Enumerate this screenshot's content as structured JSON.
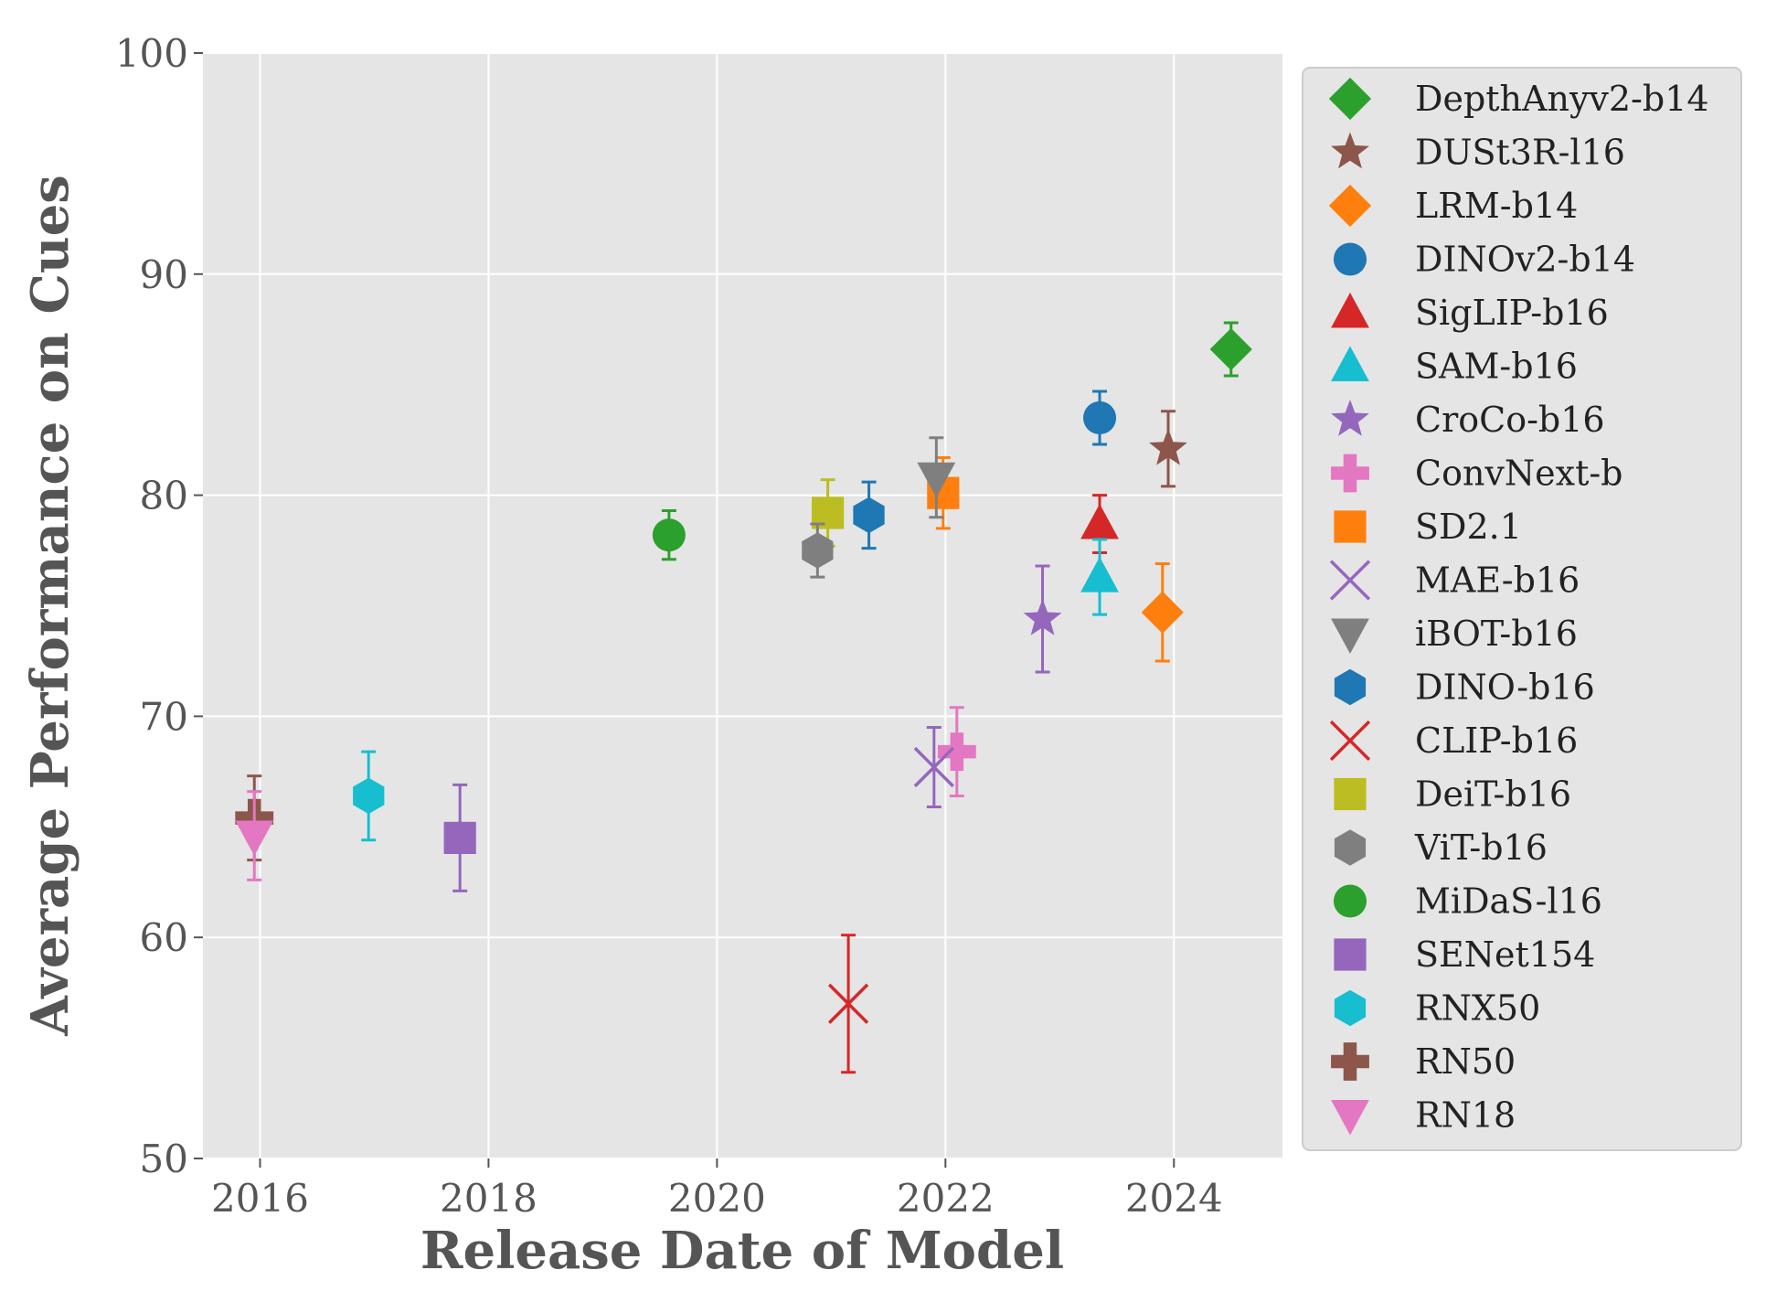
{
  "chart_data": {
    "type": "scatter",
    "title": "",
    "xlabel": "Release Date of Model",
    "ylabel": "Average Performance on Cues",
    "xlim": [
      2015.5,
      2024.95
    ],
    "ylim": [
      50,
      100
    ],
    "xticks": [
      2016,
      2018,
      2020,
      2022,
      2024
    ],
    "yticks": [
      50,
      60,
      70,
      80,
      90,
      100
    ],
    "grid": true,
    "legend_position": "right-outside",
    "series": [
      {
        "name": "DepthAnyv2-b14",
        "x": 2024.5,
        "y": 86.6,
        "err": [
          1.2,
          1.2
        ],
        "marker": "diamond",
        "color": "#2ca02c"
      },
      {
        "name": "DUSt3R-l16",
        "x": 2023.95,
        "y": 82.1,
        "err": [
          1.7,
          1.7
        ],
        "marker": "star",
        "color": "#8c564b"
      },
      {
        "name": "LRM-b14",
        "x": 2023.9,
        "y": 74.7,
        "err": [
          2.2,
          2.2
        ],
        "marker": "diamond",
        "color": "#ff7f0e"
      },
      {
        "name": "DINOv2-b14",
        "x": 2023.35,
        "y": 83.5,
        "err": [
          1.2,
          1.2
        ],
        "marker": "circle",
        "color": "#1f77b4"
      },
      {
        "name": "SigLIP-b16",
        "x": 2023.35,
        "y": 78.7,
        "err": [
          1.3,
          1.3
        ],
        "marker": "triangle-up",
        "color": "#d62728"
      },
      {
        "name": "SAM-b16",
        "x": 2023.35,
        "y": 76.3,
        "err": [
          1.7,
          1.7
        ],
        "marker": "triangle-up",
        "color": "#17becf"
      },
      {
        "name": "CroCo-b16",
        "x": 2022.85,
        "y": 74.4,
        "err": [
          2.4,
          2.4
        ],
        "marker": "star",
        "color": "#9467bd"
      },
      {
        "name": "ConvNext-b",
        "x": 2022.1,
        "y": 68.4,
        "err": [
          2.0,
          2.0
        ],
        "marker": "plus",
        "color": "#e377c2"
      },
      {
        "name": "SD2.1",
        "x": 2021.98,
        "y": 80.1,
        "err": [
          1.6,
          1.6
        ],
        "marker": "square",
        "color": "#ff7f0e"
      },
      {
        "name": "MAE-b16",
        "x": 2021.9,
        "y": 67.7,
        "err": [
          1.8,
          1.8
        ],
        "marker": "x",
        "color": "#9467bd"
      },
      {
        "name": "iBOT-b16",
        "x": 2021.92,
        "y": 80.8,
        "err": [
          1.8,
          1.8
        ],
        "marker": "triangle-down",
        "color": "#7f7f7f"
      },
      {
        "name": "DINO-b16",
        "x": 2021.33,
        "y": 79.1,
        "err": [
          1.5,
          1.5
        ],
        "marker": "hexagon",
        "color": "#1f77b4"
      },
      {
        "name": "CLIP-b16",
        "x": 2021.15,
        "y": 57.0,
        "err": [
          3.1,
          3.1
        ],
        "marker": "x",
        "color": "#d62728"
      },
      {
        "name": "DeiT-b16",
        "x": 2020.97,
        "y": 79.2,
        "err": [
          1.5,
          1.5
        ],
        "marker": "square",
        "color": "#bcbd22"
      },
      {
        "name": "ViT-b16",
        "x": 2020.88,
        "y": 77.5,
        "err": [
          1.2,
          1.2
        ],
        "marker": "hexagon",
        "color": "#7f7f7f"
      },
      {
        "name": "MiDaS-l16",
        "x": 2019.58,
        "y": 78.2,
        "err": [
          1.1,
          1.1
        ],
        "marker": "circle",
        "color": "#2ca02c"
      },
      {
        "name": "SENet154",
        "x": 2017.75,
        "y": 64.5,
        "err": [
          2.4,
          2.4
        ],
        "marker": "square",
        "color": "#9467bd"
      },
      {
        "name": "RNX50",
        "x": 2016.95,
        "y": 66.4,
        "err": [
          2.0,
          2.0
        ],
        "marker": "hexagon",
        "color": "#17becf"
      },
      {
        "name": "RN50",
        "x": 2015.95,
        "y": 65.4,
        "err": [
          1.9,
          1.9
        ],
        "marker": "plus",
        "color": "#8c564b"
      },
      {
        "name": "RN18",
        "x": 2015.95,
        "y": 64.6,
        "err": [
          2.0,
          2.0
        ],
        "marker": "triangle-down",
        "color": "#e377c2"
      }
    ]
  }
}
